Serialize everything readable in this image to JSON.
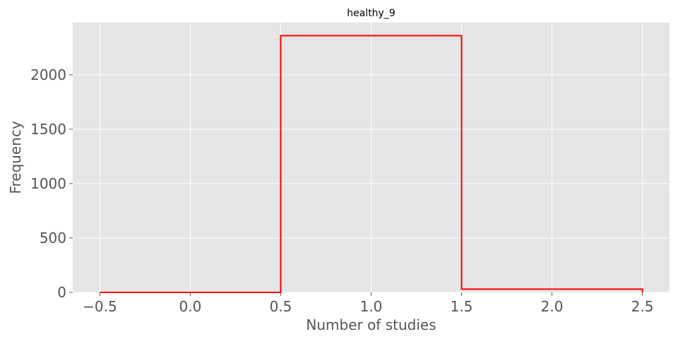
{
  "chart_data": {
    "type": "bar",
    "style": "step-histogram",
    "title": "healthy_9",
    "xlabel": "Number of studies",
    "ylabel": "Frequency",
    "bin_edges": [
      -0.5,
      0.5,
      1.5,
      2.5
    ],
    "values": [
      0,
      2360,
      30
    ],
    "xlim": [
      -0.65,
      2.65
    ],
    "ylim": [
      0,
      2480
    ],
    "x_ticks": [
      -0.5,
      0.0,
      0.5,
      1.0,
      1.5,
      2.0,
      2.5
    ],
    "x_tick_labels": [
      "−0.5",
      "0.0",
      "0.5",
      "1.0",
      "1.5",
      "2.0",
      "2.5"
    ],
    "y_ticks": [
      0,
      500,
      1000,
      1500,
      2000
    ],
    "y_tick_labels": [
      "0",
      "500",
      "1000",
      "1500",
      "2000"
    ],
    "grid": true,
    "legend": "none",
    "colors": {
      "line": "#ff0000",
      "plot_background": "#e5e5e5",
      "grid": "#ffffff",
      "tick_text": "#555555"
    }
  }
}
